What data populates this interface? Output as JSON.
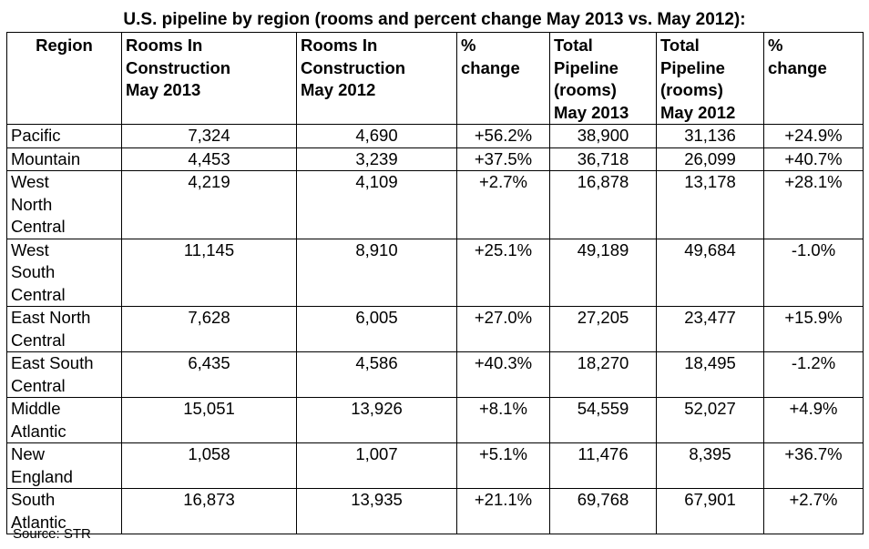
{
  "title": "U.S. pipeline by region (rooms and percent change May 2013 vs. May 2012):",
  "table": {
    "headers": [
      "Region",
      "Rooms In Construction May 2013",
      "Rooms In Construction May 2012",
      "% change",
      "Total Pipeline (rooms) May 2013",
      "Total Pipeline (rooms) May 2012",
      "% change"
    ],
    "header_lines": [
      [
        "Region"
      ],
      [
        "Rooms In",
        "Construction",
        "May 2013"
      ],
      [
        "Rooms In",
        "Construction",
        "May 2012"
      ],
      [
        "%",
        "change"
      ],
      [
        "Total",
        "Pipeline",
        "(rooms)",
        "May 2013"
      ],
      [
        "Total",
        "Pipeline",
        "(rooms)",
        "May 2012"
      ],
      [
        "%",
        "change"
      ]
    ],
    "rows": [
      {
        "region": "Pacific",
        "cells": [
          "7,324",
          "4,690",
          "+56.2%",
          "38,900",
          "31,136",
          "+24.9%"
        ]
      },
      {
        "region": "Mountain",
        "cells": [
          "4,453",
          "3,239",
          "+37.5%",
          "36,718",
          "26,099",
          "+40.7%"
        ]
      },
      {
        "region": "West North Central",
        "cells": [
          "4,219",
          "4,109",
          "+2.7%",
          "16,878",
          "13,178",
          "+28.1%"
        ]
      },
      {
        "region": "West South Central",
        "cells": [
          "11,145",
          "8,910",
          "+25.1%",
          "49,189",
          "49,684",
          "-1.0%"
        ]
      },
      {
        "region": "East North Central",
        "cells": [
          "7,628",
          "6,005",
          "+27.0%",
          "27,205",
          "23,477",
          "+15.9%"
        ]
      },
      {
        "region": "East South Central",
        "cells": [
          "6,435",
          "4,586",
          "+40.3%",
          "18,270",
          "18,495",
          "-1.2%"
        ]
      },
      {
        "region": "Middle Atlantic",
        "cells": [
          "15,051",
          "13,926",
          "+8.1%",
          "54,559",
          "52,027",
          "+4.9%"
        ]
      },
      {
        "region": "New England",
        "cells": [
          "1,058",
          "1,007",
          "+5.1%",
          "11,476",
          "8,395",
          "+36.7%"
        ]
      },
      {
        "region": "South Atlantic",
        "cells": [
          "16,873",
          "13,935",
          "+21.1%",
          "69,768",
          "67,901",
          "+2.7%"
        ]
      }
    ]
  },
  "source": "Source: STR"
}
